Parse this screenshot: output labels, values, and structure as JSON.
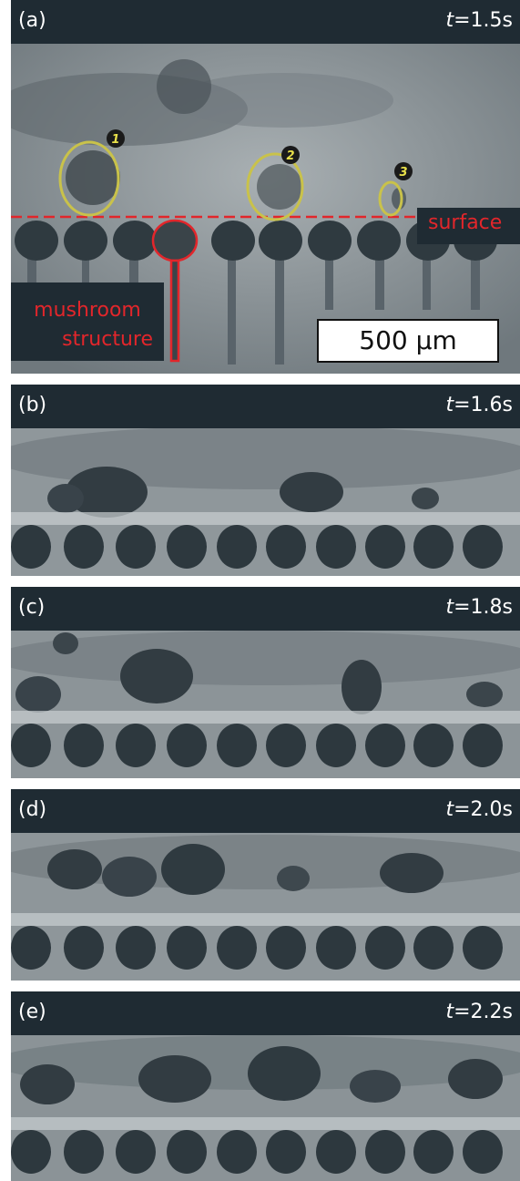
{
  "panels": [
    {
      "label": "(a)",
      "time_var": "t",
      "time_val": "=1.5s"
    },
    {
      "label": "(b)",
      "time_var": "t",
      "time_val": "=1.6s"
    },
    {
      "label": "(c)",
      "time_var": "t",
      "time_val": "=1.8s"
    },
    {
      "label": "(d)",
      "time_var": "t",
      "time_val": "=2.0s"
    },
    {
      "label": "(e)",
      "time_var": "t",
      "time_val": "=2.2s"
    }
  ],
  "annotations": {
    "surface": "surface",
    "mushroom_line1": "mushroom",
    "mushroom_line2": "structure",
    "scale_bar": "500 µm",
    "bubble_markers": [
      "1",
      "2",
      "3"
    ]
  },
  "colors": {
    "header_bg": "#1f2b33",
    "surface_line": "#e2262b",
    "bubble_outline": "#c9c24a",
    "marker_bg": "#1a1a1a",
    "marker_text": "#e8e04a"
  }
}
